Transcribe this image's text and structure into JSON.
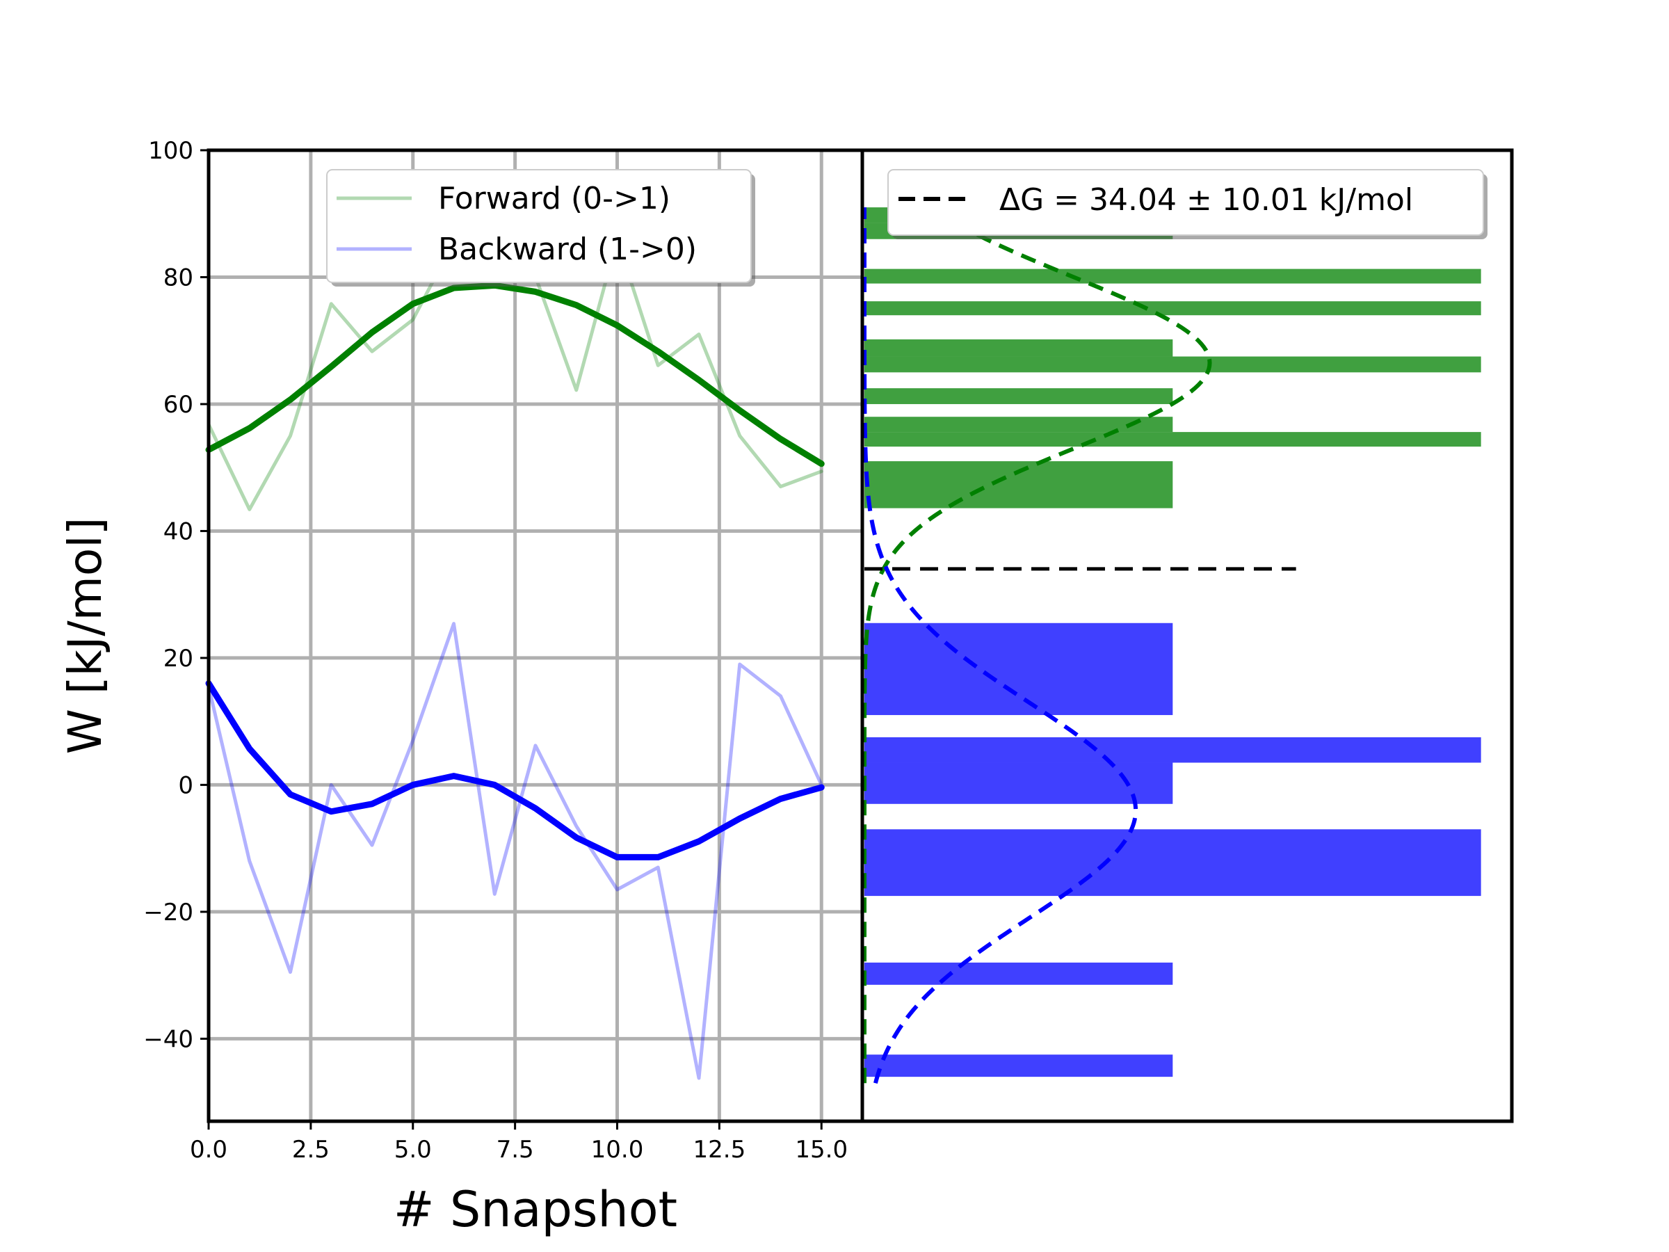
{
  "chart_data": [
    {
      "type": "line",
      "xlabel": "# Snapshot",
      "ylabel": "W [kJ/mol]",
      "xlim": [
        0,
        16
      ],
      "ylim": [
        -53,
        100
      ],
      "x_ticks": [
        0.0,
        2.5,
        5.0,
        7.5,
        10.0,
        12.5,
        15.0
      ],
      "x_tick_labels": [
        "0.0",
        "2.5",
        "5.0",
        "7.5",
        "10.0",
        "12.5",
        "15.0"
      ],
      "y_ticks": [
        100,
        80,
        60,
        40,
        20,
        0,
        -20,
        -40
      ],
      "y_tick_labels": [
        "100",
        "80",
        "60",
        "40",
        "20",
        "0",
        "−20",
        "−40"
      ],
      "grid": true,
      "legend_position": "top-center",
      "series": [
        {
          "name": "Forward (0->1)",
          "color": "#008000",
          "alpha": 0.3,
          "x": [
            0,
            1,
            2,
            3,
            4,
            5,
            6,
            7,
            8,
            9,
            10,
            11,
            12,
            13,
            14,
            15
          ],
          "values": [
            56.8,
            43.4,
            55.0,
            75.8,
            68.3,
            73.3,
            85.6,
            87.0,
            80.1,
            62.2,
            86.0,
            66.1,
            71.0,
            55.0,
            47.0,
            49.4
          ]
        },
        {
          "name": "Backward (1->0)",
          "color": "#0000ff",
          "alpha": 0.3,
          "x": [
            0,
            1,
            2,
            3,
            4,
            5,
            6,
            7,
            8,
            9,
            10,
            11,
            12,
            13,
            14,
            15
          ],
          "values": [
            15.5,
            -12.0,
            -29.5,
            0.0,
            -9.5,
            7.0,
            25.4,
            -17.2,
            6.2,
            -6.5,
            -16.5,
            -13.0,
            -46.2,
            19.0,
            14.0,
            0.0
          ]
        },
        {
          "color": "#008000",
          "alpha": 1.0,
          "x": [
            0,
            1,
            2,
            3,
            4,
            5,
            6,
            7,
            8,
            9,
            10,
            11,
            12,
            13,
            14,
            15
          ],
          "values": [
            52.8,
            56.2,
            60.7,
            65.9,
            71.3,
            75.8,
            78.3,
            78.7,
            77.7,
            75.6,
            72.4,
            68.3,
            63.8,
            59.0,
            54.5,
            50.6
          ]
        },
        {
          "color": "#0000ff",
          "alpha": 1.0,
          "x": [
            0,
            1,
            2,
            3,
            4,
            5,
            6,
            7,
            8,
            9,
            10,
            11,
            12,
            13,
            14,
            15
          ],
          "values": [
            16.0,
            5.7,
            -1.5,
            -4.2,
            -3.0,
            0.0,
            1.4,
            0.0,
            -3.7,
            -8.3,
            -11.4,
            -11.4,
            -8.9,
            -5.3,
            -2.2,
            -0.4
          ]
        }
      ]
    },
    {
      "type": "bar",
      "orientation": "horizontal",
      "xlabel": "",
      "ylabel": "",
      "ylim": [
        -53,
        100
      ],
      "xlim": [
        0,
        2.1
      ],
      "grid": false,
      "legend_position": "top-right",
      "legend_entries": [
        "ΔG = 34.04 ± 10.01 kJ/mol"
      ],
      "delta_g": 34.04,
      "delta_g_error": 10.01,
      "delta_g_line_extent": 1.4,
      "series": [
        {
          "name": "forward-histogram",
          "color": "#008000",
          "alpha": 0.75,
          "bins": [
            {
              "from": 43.6,
              "to": 51.0,
              "count": 1
            },
            {
              "from": 53.3,
              "to": 55.6,
              "count": 2
            },
            {
              "from": 55.6,
              "to": 58.0,
              "count": 1
            },
            {
              "from": 60.0,
              "to": 62.5,
              "count": 1
            },
            {
              "from": 65.0,
              "to": 67.5,
              "count": 2
            },
            {
              "from": 67.5,
              "to": 70.2,
              "count": 1
            },
            {
              "from": 74.0,
              "to": 76.2,
              "count": 2
            },
            {
              "from": 79.0,
              "to": 81.3,
              "count": 2
            },
            {
              "from": 86.0,
              "to": 88.5,
              "count": 1
            },
            {
              "from": 88.5,
              "to": 91.0,
              "count": 0.1
            }
          ]
        },
        {
          "name": "backward-histogram",
          "color": "#0000ff",
          "alpha": 0.75,
          "bins": [
            {
              "from": -46.0,
              "to": -42.5,
              "count": 1
            },
            {
              "from": -31.5,
              "to": -28.0,
              "count": 1
            },
            {
              "from": -17.5,
              "to": -7.0,
              "count": 2
            },
            {
              "from": -3.0,
              "to": 3.5,
              "count": 1
            },
            {
              "from": 3.5,
              "to": 7.5,
              "count": 2
            },
            {
              "from": 11.0,
              "to": 25.5,
              "count": 1
            }
          ]
        },
        {
          "name": "forward-gaussian-fit",
          "color": "#008000",
          "style": "dashed",
          "mean": 66.5,
          "std": 13.5,
          "peak": 1.12
        },
        {
          "name": "backward-gaussian-fit",
          "color": "#0000ff",
          "style": "dashed",
          "mean": -4.0,
          "std": 17.0,
          "peak": 0.88
        }
      ]
    }
  ]
}
